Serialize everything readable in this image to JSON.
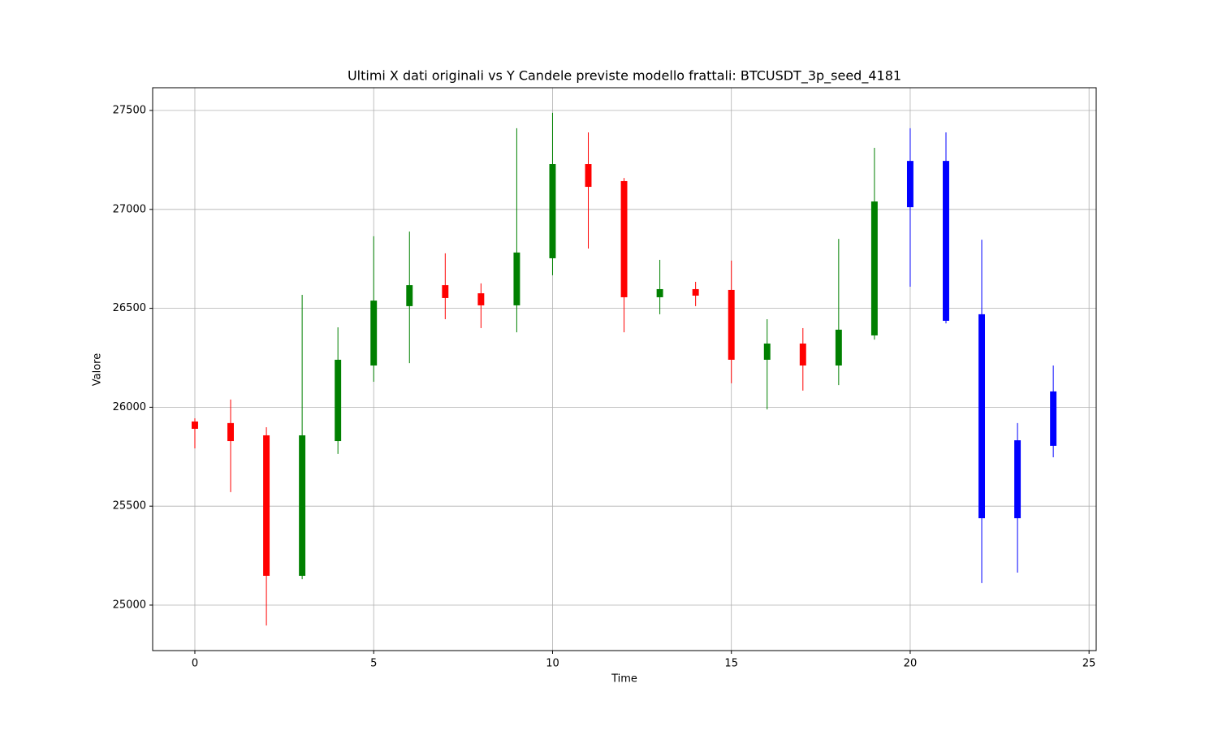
{
  "chart_data": {
    "type": "candlestick",
    "title": "Ultimi X dati originali vs Y Candele previste modello frattali: BTCUSDT_3p_seed_4181",
    "x_label": "Time",
    "y_label": "Valore",
    "x": [
      0,
      1,
      2,
      3,
      4,
      5,
      6,
      7,
      8,
      9,
      10,
      11,
      12,
      13,
      14,
      15,
      16,
      17,
      18,
      19,
      20,
      21,
      22,
      23,
      24
    ],
    "open": [
      25928,
      25920,
      25858,
      25148,
      25829,
      26211,
      26511,
      26617,
      26576,
      26515,
      26753,
      27229,
      27143,
      26556,
      26597,
      26593,
      26240,
      26322,
      26211,
      26363,
      27011,
      27245,
      26470,
      25439,
      25805
    ],
    "high": [
      25944,
      26039,
      25899,
      26568,
      26404,
      26864,
      26888,
      26778,
      26626,
      27410,
      27488,
      27389,
      27159,
      26745,
      26634,
      26741,
      26445,
      26400,
      26851,
      27311,
      27410,
      27389,
      26847,
      25920,
      26211
    ],
    "low": [
      25792,
      25571,
      24897,
      25131,
      25764,
      26129,
      26223,
      26445,
      26400,
      26379,
      26667,
      26802,
      26379,
      26470,
      26511,
      26121,
      25989,
      26084,
      26112,
      26342,
      26609,
      26424,
      25111,
      25164,
      25747
    ],
    "close": [
      25891,
      25829,
      25148,
      25858,
      26240,
      26539,
      26617,
      26552,
      26515,
      26782,
      27229,
      27114,
      26556,
      26597,
      26564,
      26240,
      26322,
      26211,
      26392,
      27040,
      27245,
      26437,
      25439,
      25833,
      26080
    ],
    "colors": [
      "red",
      "red",
      "red",
      "green",
      "green",
      "green",
      "green",
      "red",
      "red",
      "green",
      "green",
      "red",
      "red",
      "green",
      "red",
      "red",
      "green",
      "red",
      "green",
      "green",
      "blue",
      "blue",
      "blue",
      "blue",
      "blue"
    ],
    "xlim": [
      -1.18,
      25.2
    ],
    "ylim": [
      24770,
      27615
    ],
    "xticks": [
      0,
      5,
      10,
      15,
      20,
      25
    ],
    "yticks": [
      25000,
      25500,
      26000,
      26500,
      27000,
      27500
    ],
    "grid": true
  }
}
